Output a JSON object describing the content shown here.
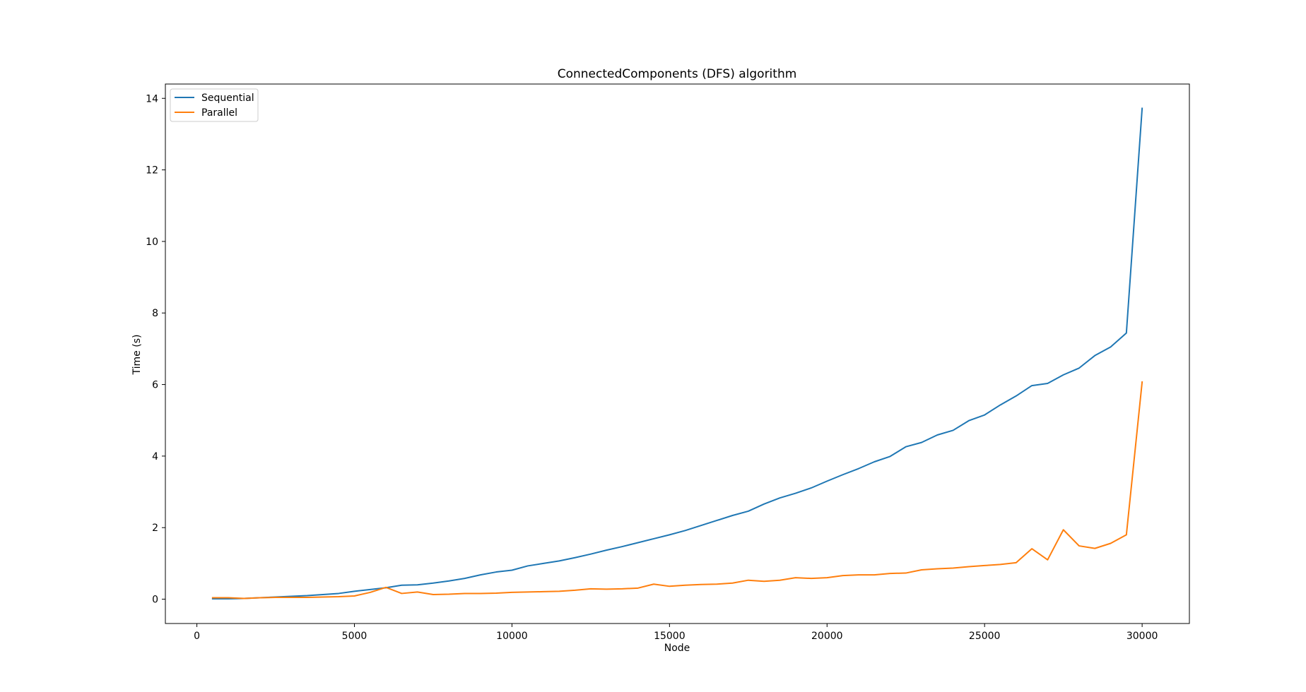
{
  "chart_data": {
    "type": "line",
    "title": "ConnectedComponents (DFS) algorithm",
    "xlabel": "Node",
    "ylabel": "Time (s)",
    "xlim": [
      -1000,
      31500
    ],
    "ylim": [
      -0.68,
      14.4
    ],
    "xticks": [
      0,
      5000,
      10000,
      15000,
      20000,
      25000,
      30000
    ],
    "yticks": [
      0,
      2,
      4,
      6,
      8,
      10,
      12,
      14
    ],
    "grid": false,
    "legend_position": "upper-left",
    "x": [
      500,
      1000,
      1500,
      2000,
      2500,
      3000,
      3500,
      4000,
      4500,
      5000,
      5500,
      6000,
      6500,
      7000,
      7500,
      8000,
      8500,
      9000,
      9500,
      10000,
      10500,
      11000,
      11500,
      12000,
      12500,
      13000,
      13500,
      14000,
      14500,
      15000,
      15500,
      16000,
      16500,
      17000,
      17500,
      18000,
      18500,
      19000,
      19500,
      20000,
      20500,
      21000,
      21500,
      22000,
      22500,
      23000,
      23500,
      24000,
      24500,
      25000,
      25500,
      26000,
      26500,
      27000,
      27500,
      28000,
      28500,
      29000,
      29500,
      30000
    ],
    "series": [
      {
        "name": "Sequential",
        "color": "#1f77b4",
        "values": [
          0.01,
          0.01,
          0.02,
          0.04,
          0.06,
          0.08,
          0.1,
          0.13,
          0.16,
          0.22,
          0.27,
          0.32,
          0.39,
          0.4,
          0.45,
          0.51,
          0.58,
          0.68,
          0.76,
          0.81,
          0.93,
          1.0,
          1.07,
          1.16,
          1.26,
          1.37,
          1.47,
          1.58,
          1.69,
          1.8,
          1.92,
          2.06,
          2.2,
          2.34,
          2.46,
          2.66,
          2.83,
          2.96,
          3.11,
          3.3,
          3.48,
          3.65,
          3.84,
          3.99,
          4.26,
          4.38,
          4.59,
          4.72,
          4.99,
          5.15,
          5.43,
          5.68,
          5.97,
          6.03,
          6.27,
          6.46,
          6.81,
          7.05,
          7.44,
          13.72
        ]
      },
      {
        "name": "Parallel",
        "color": "#ff7f0e",
        "values": [
          0.04,
          0.04,
          0.02,
          0.04,
          0.05,
          0.05,
          0.05,
          0.06,
          0.07,
          0.09,
          0.19,
          0.33,
          0.16,
          0.2,
          0.13,
          0.14,
          0.16,
          0.16,
          0.17,
          0.19,
          0.2,
          0.21,
          0.22,
          0.25,
          0.29,
          0.28,
          0.29,
          0.31,
          0.42,
          0.36,
          0.39,
          0.41,
          0.42,
          0.45,
          0.53,
          0.5,
          0.53,
          0.6,
          0.58,
          0.6,
          0.66,
          0.68,
          0.68,
          0.72,
          0.73,
          0.82,
          0.85,
          0.87,
          0.91,
          0.94,
          0.97,
          1.02,
          1.41,
          1.1,
          1.94,
          1.49,
          1.42,
          1.56,
          1.8,
          6.07
        ]
      }
    ]
  }
}
